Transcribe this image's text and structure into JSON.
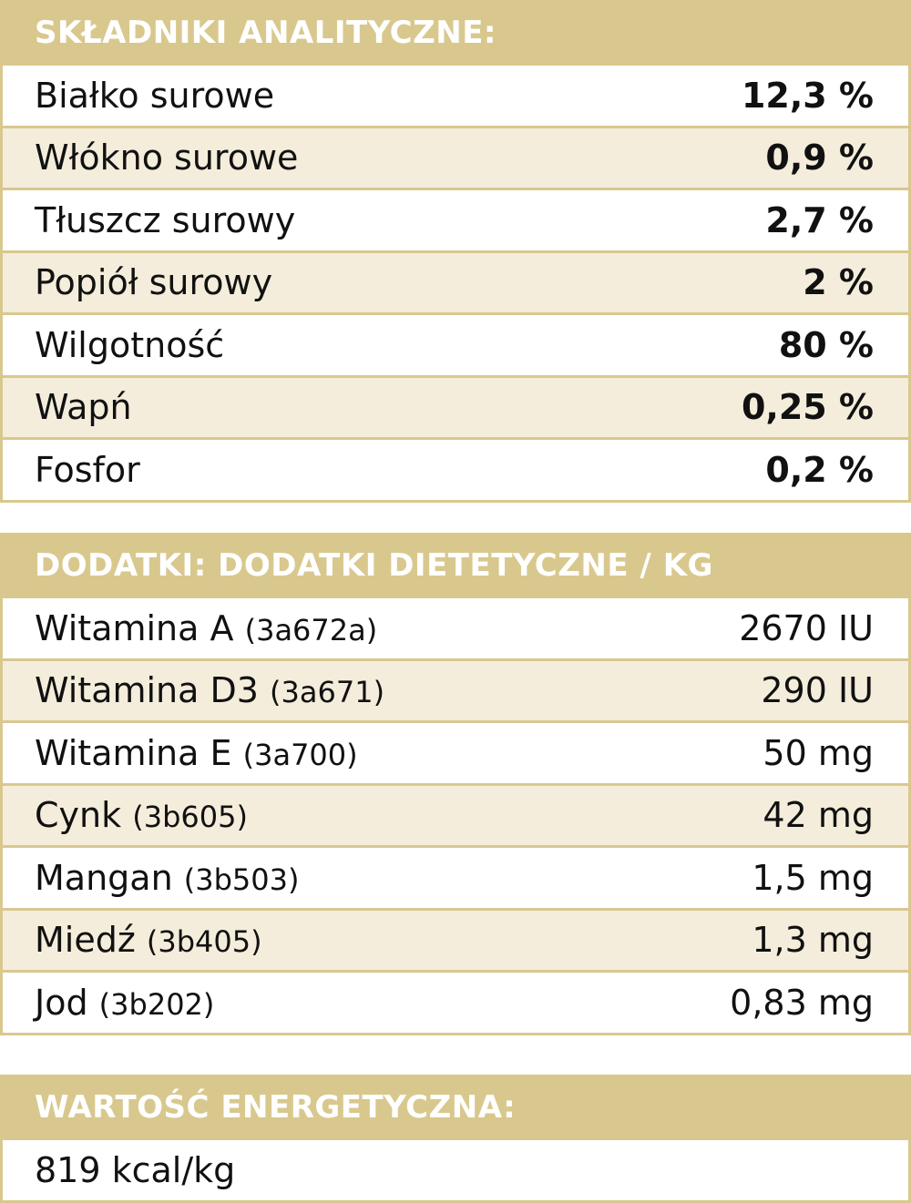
{
  "analytical": {
    "title": "SKŁADNIKI ANALITYCZNE:",
    "rows": [
      {
        "name": "Białko surowe",
        "value": "12,3 %"
      },
      {
        "name": "Włókno surowe",
        "value": "0,9 %"
      },
      {
        "name": "Tłuszcz surowy",
        "value": "2,7 %"
      },
      {
        "name": "Popiół surowy",
        "value": "2 %"
      },
      {
        "name": "Wilgotność",
        "value": "80 %"
      },
      {
        "name": "Wapń",
        "value": "0,25 %"
      },
      {
        "name": "Fosfor",
        "value": "0,2 %"
      }
    ]
  },
  "additives": {
    "title": "DODATKI: DODATKI DIETETYCZNE / KG",
    "rows": [
      {
        "name": "Witamina A",
        "code": "(3a672a)",
        "value": "2670 IU"
      },
      {
        "name": "Witamina D3",
        "code": "(3a671)",
        "value": "290 IU"
      },
      {
        "name": "Witamina E",
        "code": "(3a700)",
        "value": "50 mg"
      },
      {
        "name": "Cynk",
        "code": "(3b605)",
        "value": "42 mg"
      },
      {
        "name": "Mangan",
        "code": "(3b503)",
        "value": "1,5 mg"
      },
      {
        "name": "Miedź",
        "code": "(3b405)",
        "value": "1,3 mg"
      },
      {
        "name": "Jod",
        "code": "(3b202)",
        "value": "0,83 mg"
      }
    ]
  },
  "energy": {
    "title": "WARTOŚĆ ENERGETYCZNA:",
    "value": "819 kcal/kg"
  },
  "colors": {
    "header_bg": "#d9c88e",
    "row_alt_bg": "#f4eddb"
  }
}
